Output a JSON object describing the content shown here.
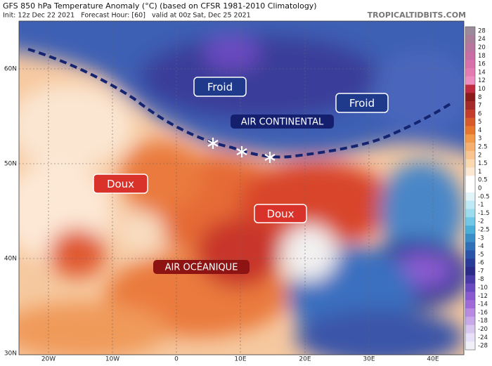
{
  "header": {
    "title": "GFS 850 hPa Temperature Anomaly (°C) (based on CFSR 1981-2010 Climatology)",
    "subtitle": "Init: 12z Dec 22 2021   Forecast Hour: [60]   valid at 00z Sat, Dec 25 2021",
    "source": "TROPICALTIDBITS.COM"
  },
  "map": {
    "lat_labels": [
      "60N",
      "50N",
      "40N",
      "30N"
    ],
    "lon_labels": [
      "20W",
      "10W",
      "0",
      "10E",
      "20E",
      "30E",
      "40E"
    ],
    "annotations": [
      "Froid",
      "Froid",
      "AIR CONTINENTAL",
      "Doux",
      "Doux",
      "AIR OCÉANIQUE"
    ]
  },
  "colorbar": {
    "labels": [
      28,
      24,
      20,
      18,
      16,
      14,
      12,
      10,
      8,
      7,
      6,
      5,
      4,
      3,
      2.5,
      2,
      1.5,
      1,
      0.5,
      0,
      -0.5,
      -1,
      -1.5,
      -2,
      -2.5,
      -3,
      -4,
      -5,
      -6,
      -7,
      -8,
      -10,
      -12,
      -14,
      -16,
      -18,
      -20,
      -24,
      -28
    ],
    "colors": [
      "#9a8a9a",
      "#a87e98",
      "#b8769e",
      "#c86ea4",
      "#d870aa",
      "#e47cb2",
      "#ec8ec0",
      "#c02a40",
      "#8b1a1a",
      "#a52a2a",
      "#c43c2c",
      "#d85a2a",
      "#e8772e",
      "#f29a4a",
      "#f5b070",
      "#f8c590",
      "#fad8b0",
      "#fce8d2",
      "#ffffff",
      "#ffffff",
      "#e0f4fa",
      "#bfeaf5",
      "#9bdcee",
      "#70c8e6",
      "#4aaed8",
      "#3a8ec8",
      "#2f6fb8",
      "#2a52a8",
      "#2a3a98",
      "#2a2a88",
      "#4a3aa8",
      "#6a4ac0",
      "#8a5ad0",
      "#a06ad8",
      "#b88ae0",
      "#c8a8e8",
      "#d8c8f0",
      "#e8e0f8",
      "#f0f0f8"
    ]
  }
}
